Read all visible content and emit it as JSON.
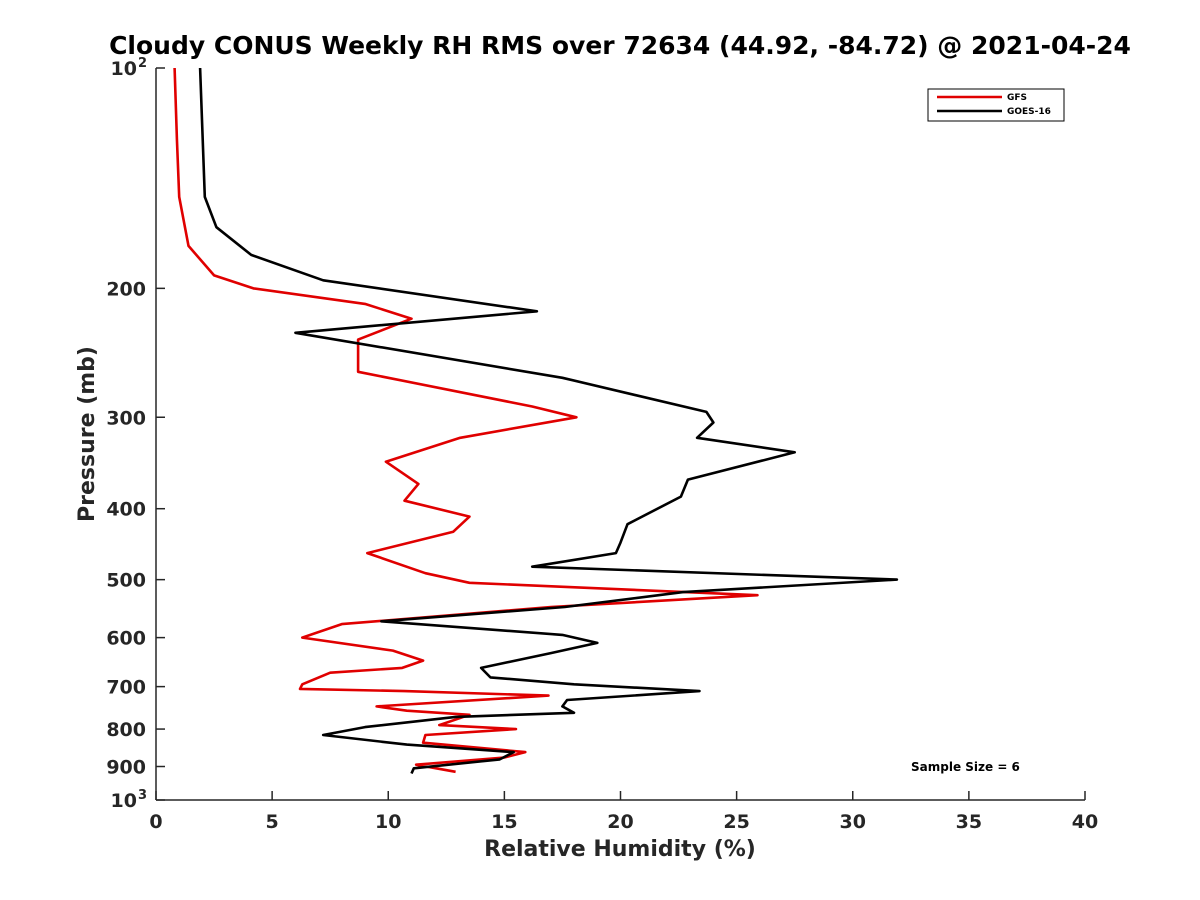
{
  "chart_data": {
    "type": "line",
    "title": "Cloudy CONUS Weekly RH RMS over 72634 (44.92, -84.72) @ 2021-04-24",
    "xlabel": "Relative Humidity (%)",
    "ylabel": "Pressure (mb)",
    "xlim": [
      0,
      40
    ],
    "ylim": [
      100,
      1000
    ],
    "y_scale": "log",
    "y_reversed": true,
    "x_ticks": [
      {
        "value": 0,
        "label": "0"
      },
      {
        "value": 5,
        "label": "5"
      },
      {
        "value": 10,
        "label": "10"
      },
      {
        "value": 15,
        "label": "15"
      },
      {
        "value": 20,
        "label": "20"
      },
      {
        "value": 25,
        "label": "25"
      },
      {
        "value": 30,
        "label": "30"
      },
      {
        "value": 35,
        "label": "35"
      },
      {
        "value": 40,
        "label": "40"
      }
    ],
    "y_ticks": [
      {
        "value": 100,
        "label": "10",
        "sup": "2"
      },
      {
        "value": 200,
        "label": "200",
        "sup": ""
      },
      {
        "value": 300,
        "label": "300",
        "sup": ""
      },
      {
        "value": 400,
        "label": "400",
        "sup": ""
      },
      {
        "value": 500,
        "label": "500",
        "sup": ""
      },
      {
        "value": 600,
        "label": "600",
        "sup": ""
      },
      {
        "value": 700,
        "label": "700",
        "sup": ""
      },
      {
        "value": 800,
        "label": "800",
        "sup": ""
      },
      {
        "value": 900,
        "label": "900",
        "sup": ""
      },
      {
        "value": 1000,
        "label": "10",
        "sup": "3"
      }
    ],
    "grid": false,
    "legend_position": "top-right",
    "annotation": "Sample Size = 6",
    "series": [
      {
        "name": "GFS",
        "color": "#e00000",
        "points": [
          [
            0.8,
            100
          ],
          [
            0.9,
            125
          ],
          [
            1.0,
            150
          ],
          [
            1.4,
            175
          ],
          [
            2.5,
            192
          ],
          [
            4.2,
            200
          ],
          [
            9.0,
            210
          ],
          [
            11.0,
            220
          ],
          [
            8.7,
            235
          ],
          [
            8.7,
            260
          ],
          [
            16.2,
            290
          ],
          [
            18.1,
            300
          ],
          [
            13.1,
            320
          ],
          [
            9.9,
            345
          ],
          [
            11.3,
            370
          ],
          [
            10.7,
            390
          ],
          [
            13.5,
            410
          ],
          [
            12.8,
            430
          ],
          [
            9.1,
            460
          ],
          [
            11.6,
            490
          ],
          [
            13.5,
            505
          ],
          [
            25.9,
            525
          ],
          [
            17.0,
            545
          ],
          [
            8.0,
            575
          ],
          [
            6.3,
            600
          ],
          [
            10.2,
            625
          ],
          [
            11.5,
            645
          ],
          [
            10.6,
            660
          ],
          [
            7.5,
            670
          ],
          [
            6.3,
            695
          ],
          [
            6.2,
            705
          ],
          [
            10.7,
            710
          ],
          [
            16.9,
            720
          ],
          [
            9.5,
            745
          ],
          [
            10.8,
            755
          ],
          [
            13.5,
            765
          ],
          [
            12.2,
            790
          ],
          [
            15.5,
            800
          ],
          [
            11.6,
            815
          ],
          [
            11.5,
            835
          ],
          [
            15.9,
            860
          ],
          [
            15.0,
            875
          ],
          [
            11.2,
            895
          ],
          [
            12.9,
            915
          ]
        ]
      },
      {
        "name": "GOES-16",
        "color": "#000000",
        "points": [
          [
            1.9,
            100
          ],
          [
            2.1,
            150
          ],
          [
            2.6,
            165
          ],
          [
            4.1,
            180
          ],
          [
            7.2,
            195
          ],
          [
            16.4,
            215
          ],
          [
            6.0,
            230
          ],
          [
            17.5,
            265
          ],
          [
            23.7,
            295
          ],
          [
            24.0,
            305
          ],
          [
            23.3,
            320
          ],
          [
            27.5,
            335
          ],
          [
            22.9,
            365
          ],
          [
            22.6,
            385
          ],
          [
            20.3,
            420
          ],
          [
            20.0,
            445
          ],
          [
            19.8,
            460
          ],
          [
            16.2,
            480
          ],
          [
            31.9,
            500
          ],
          [
            22.7,
            520
          ],
          [
            17.6,
            545
          ],
          [
            9.7,
            570
          ],
          [
            17.5,
            595
          ],
          [
            19.0,
            610
          ],
          [
            17.0,
            630
          ],
          [
            14.0,
            660
          ],
          [
            14.4,
            680
          ],
          [
            18.0,
            695
          ],
          [
            23.4,
            710
          ],
          [
            17.7,
            730
          ],
          [
            17.5,
            745
          ],
          [
            18.0,
            760
          ],
          [
            12.9,
            770
          ],
          [
            9.0,
            795
          ],
          [
            7.2,
            815
          ],
          [
            10.8,
            840
          ],
          [
            15.4,
            860
          ],
          [
            14.8,
            880
          ],
          [
            11.1,
            905
          ],
          [
            11.0,
            920
          ]
        ]
      }
    ]
  }
}
